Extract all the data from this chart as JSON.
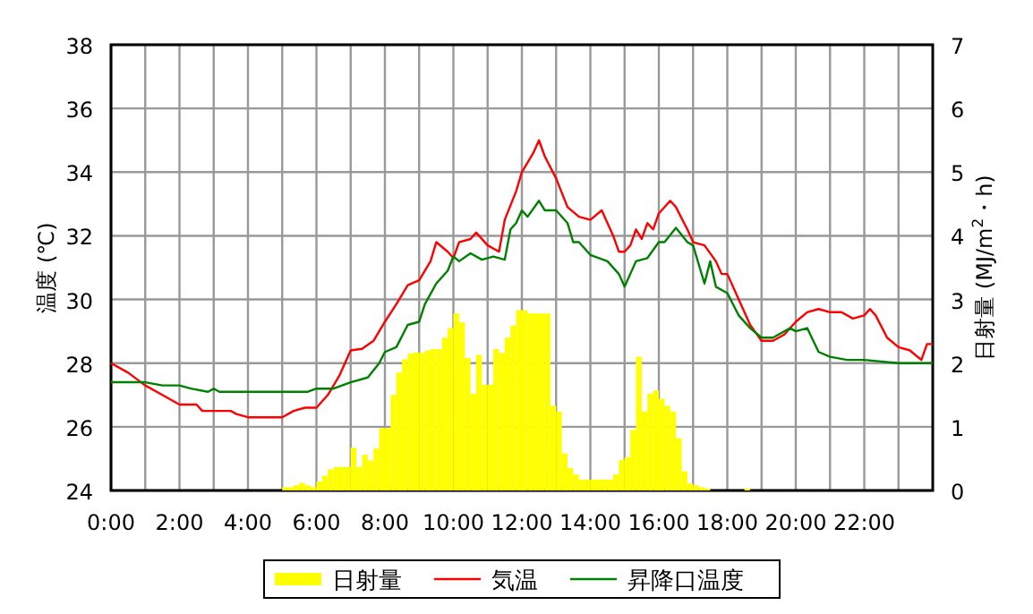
{
  "chart_data": {
    "type": "line",
    "ylabel": "温度 (℃)",
    "y2label": "日射量 (MJ/m$^{2}$・h)",
    "xlim": [
      0,
      24
    ],
    "ylim": [
      24,
      38
    ],
    "y2lim": [
      0,
      7
    ],
    "xticks": [
      {
        "value": 0,
        "label": "0:00"
      },
      {
        "value": 1,
        "label": null
      },
      {
        "value": 2,
        "label": "2:00"
      },
      {
        "value": 3,
        "label": null
      },
      {
        "value": 4,
        "label": "4:00"
      },
      {
        "value": 5,
        "label": null
      },
      {
        "value": 6,
        "label": "6:00"
      },
      {
        "value": 7,
        "label": null
      },
      {
        "value": 8,
        "label": "8:00"
      },
      {
        "value": 9,
        "label": null
      },
      {
        "value": 10,
        "label": "10:00"
      },
      {
        "value": 11,
        "label": null
      },
      {
        "value": 12,
        "label": "12:00"
      },
      {
        "value": 13,
        "label": null
      },
      {
        "value": 14,
        "label": "14:00"
      },
      {
        "value": 15,
        "label": null
      },
      {
        "value": 16,
        "label": "16:00"
      },
      {
        "value": 17,
        "label": null
      },
      {
        "value": 18,
        "label": "18:00"
      },
      {
        "value": 19,
        "label": null
      },
      {
        "value": 20,
        "label": "20:00"
      },
      {
        "value": 21,
        "label": null
      },
      {
        "value": 22,
        "label": "22:00"
      },
      {
        "value": 23,
        "label": null
      }
    ],
    "yticks": [
      24,
      26,
      28,
      30,
      32,
      34,
      36,
      38
    ],
    "y2ticks": [
      0,
      1,
      2,
      3,
      4,
      5,
      6,
      7
    ],
    "grid": true,
    "legend": "bottom",
    "series": [
      {
        "name": "日射量",
        "type": "bar",
        "axis": "y2",
        "color": "#ffff00",
        "x": [
          5,
          5.167,
          5.333,
          5.5,
          5.667,
          5.833,
          6,
          6.167,
          6.333,
          6.5,
          6.667,
          6.833,
          7,
          7.167,
          7.333,
          7.5,
          7.667,
          7.833,
          8,
          8.167,
          8.333,
          8.5,
          8.667,
          8.833,
          9,
          9.167,
          9.333,
          9.5,
          9.667,
          9.833,
          10,
          10.167,
          10.333,
          10.5,
          10.667,
          10.833,
          11,
          11.167,
          11.333,
          11.5,
          11.667,
          11.833,
          12,
          12.167,
          12.333,
          12.5,
          12.667,
          12.833,
          13,
          13.167,
          13.333,
          13.5,
          13.667,
          13.833,
          14,
          14.167,
          14.333,
          14.5,
          14.667,
          14.833,
          15,
          15.167,
          15.333,
          15.5,
          15.667,
          15.833,
          16,
          16.167,
          16.333,
          16.5,
          16.667,
          16.833,
          17,
          17.167,
          17.333,
          17.5,
          17.667,
          17.833,
          18,
          18.167,
          18.333,
          18.5,
          18.667,
          18.833
        ],
        "values": [
          0.05,
          0.05,
          0.08,
          0.12,
          0.08,
          0.05,
          0.14,
          0.23,
          0.33,
          0.37,
          0.37,
          0.37,
          0.67,
          0.37,
          0.56,
          0.47,
          0.66,
          0.98,
          0.98,
          1.5,
          1.85,
          2.06,
          2.15,
          2.17,
          2.16,
          2.2,
          2.22,
          2.22,
          2.4,
          2.55,
          2.78,
          2.64,
          2.08,
          1.52,
          2.13,
          1.66,
          1.66,
          2.22,
          2.16,
          2.4,
          2.59,
          2.83,
          2.83,
          2.78,
          2.78,
          2.78,
          2.78,
          1.33,
          1.24,
          0.58,
          0.35,
          0.25,
          0.17,
          0.17,
          0.17,
          0.17,
          0.17,
          0.17,
          0.25,
          0.48,
          0.52,
          0.95,
          2.1,
          1.24,
          1.52,
          1.57,
          1.44,
          1.33,
          1.24,
          0.82,
          0.3,
          0.11,
          0.08,
          0.05,
          0.03,
          0,
          0,
          0,
          0,
          0,
          0,
          0.03,
          0,
          0
        ]
      },
      {
        "name": "気温",
        "color": "#ff0000",
        "x": [
          0,
          0.5,
          1,
          1.5,
          2,
          2.5,
          2.667,
          3,
          3.5,
          3.667,
          4,
          4.5,
          5,
          5.333,
          5.667,
          6,
          6.333,
          6.667,
          7,
          7.333,
          7.667,
          8,
          8.333,
          8.667,
          9,
          9.333,
          9.5,
          9.833,
          10,
          10.167,
          10.5,
          10.667,
          11,
          11.333,
          11.5,
          11.833,
          12,
          12.333,
          12.5,
          12.667,
          13,
          13.333,
          13.667,
          14,
          14.333,
          14.667,
          14.833,
          15,
          15.167,
          15.333,
          15.5,
          15.667,
          15.833,
          16,
          16.333,
          16.5,
          16.833,
          17,
          17.333,
          17.667,
          17.833,
          18,
          18.333,
          18.667,
          19,
          19.333,
          19.667,
          20,
          20.333,
          20.667,
          21,
          21.333,
          21.667,
          22,
          22.167,
          22.333,
          22.667,
          23,
          23.333,
          23.667,
          23.833,
          24
        ],
        "values": [
          28.0,
          27.7,
          27.3,
          27.0,
          26.7,
          26.7,
          26.5,
          26.5,
          26.5,
          26.4,
          26.3,
          26.3,
          26.3,
          26.5,
          26.6,
          26.6,
          27.0,
          27.6,
          28.4,
          28.45,
          28.7,
          29.3,
          29.85,
          30.45,
          30.6,
          31.2,
          31.8,
          31.5,
          31.3,
          31.8,
          31.9,
          32.1,
          31.7,
          31.5,
          32.5,
          33.4,
          34.0,
          34.6,
          35.0,
          34.5,
          33.8,
          32.9,
          32.6,
          32.5,
          32.8,
          32.0,
          31.5,
          31.5,
          31.7,
          32.2,
          31.9,
          32.4,
          32.2,
          32.7,
          33.1,
          32.9,
          32.2,
          31.8,
          31.7,
          31.2,
          30.8,
          30.8,
          30.0,
          29.2,
          28.7,
          28.7,
          28.9,
          29.3,
          29.6,
          29.7,
          29.6,
          29.6,
          29.4,
          29.5,
          29.7,
          29.5,
          28.8,
          28.5,
          28.4,
          28.1,
          28.6,
          28.6
        ]
      },
      {
        "name": "昇降口温度",
        "color": "#008000",
        "x": [
          0,
          1,
          1.5,
          2,
          2.333,
          2.833,
          3,
          3.167,
          4,
          5,
          5.75,
          6,
          6.5,
          7,
          7.5,
          7.833,
          8,
          8.333,
          8.667,
          9,
          9.167,
          9.5,
          9.833,
          10,
          10.167,
          10.5,
          10.833,
          11.167,
          11.5,
          11.667,
          11.833,
          12,
          12.167,
          12.5,
          12.667,
          13,
          13.333,
          13.5,
          13.667,
          14,
          14.5,
          14.833,
          15,
          15.333,
          15.667,
          16,
          16.167,
          16.5,
          16.833,
          17,
          17.333,
          17.5,
          17.667,
          18,
          18.333,
          18.667,
          19,
          19.333,
          19.833,
          20,
          20.333,
          20.667,
          21,
          21.5,
          22,
          23,
          24
        ],
        "values": [
          27.4,
          27.4,
          27.3,
          27.3,
          27.2,
          27.1,
          27.2,
          27.1,
          27.1,
          27.1,
          27.1,
          27.2,
          27.2,
          27.4,
          27.55,
          28.0,
          28.35,
          28.5,
          29.2,
          29.3,
          29.85,
          30.5,
          30.9,
          31.35,
          31.2,
          31.45,
          31.25,
          31.35,
          31.25,
          32.2,
          32.4,
          32.8,
          32.6,
          33.1,
          32.8,
          32.8,
          32.4,
          31.8,
          31.8,
          31.4,
          31.2,
          30.8,
          30.4,
          31.2,
          31.3,
          31.8,
          31.8,
          32.25,
          31.8,
          31.7,
          30.5,
          31.2,
          30.4,
          30.2,
          29.5,
          29.1,
          28.8,
          28.8,
          29.1,
          29.0,
          29.1,
          28.35,
          28.2,
          28.1,
          28.1,
          28.0,
          28.0
        ]
      }
    ]
  }
}
